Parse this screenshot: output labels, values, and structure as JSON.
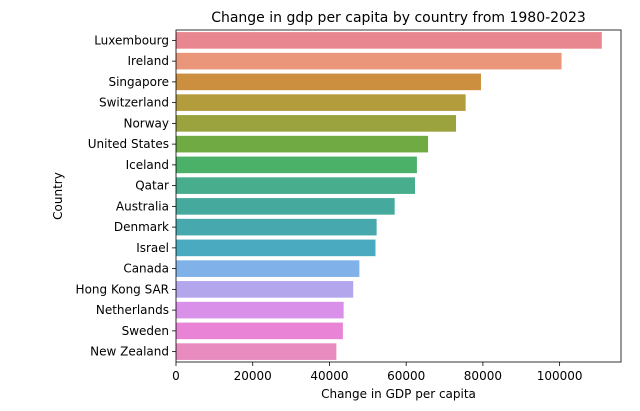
{
  "chart_data": {
    "type": "bar",
    "orientation": "horizontal",
    "title": "Change in gdp per capita by country from 1980-2023",
    "xlabel": "Change in GDP per capita",
    "ylabel": "Country",
    "xlim": [
      0,
      116000
    ],
    "xticks": [
      0,
      20000,
      40000,
      60000,
      80000,
      100000
    ],
    "grid": false,
    "categories": [
      "Luxembourg",
      "Ireland",
      "Singapore",
      "Switzerland",
      "Norway",
      "United States",
      "Iceland",
      "Qatar",
      "Australia",
      "Denmark",
      "Israel",
      "Canada",
      "Hong Kong SAR",
      "Netherlands",
      "Sweden",
      "New Zealand"
    ],
    "values": [
      111000,
      100500,
      79500,
      75500,
      73000,
      65700,
      62800,
      62300,
      57000,
      52300,
      52000,
      47800,
      46200,
      43700,
      43500,
      41800
    ],
    "colors": [
      "#e8878f",
      "#e9967a",
      "#cc8f3f",
      "#b39c3c",
      "#9aa33d",
      "#6faa42",
      "#4bb068",
      "#48ad8d",
      "#45aa9d",
      "#47a8ae",
      "#4aaac0",
      "#80b1e8",
      "#b3a6ec",
      "#d990e8",
      "#e883d6",
      "#e88cc0"
    ]
  }
}
